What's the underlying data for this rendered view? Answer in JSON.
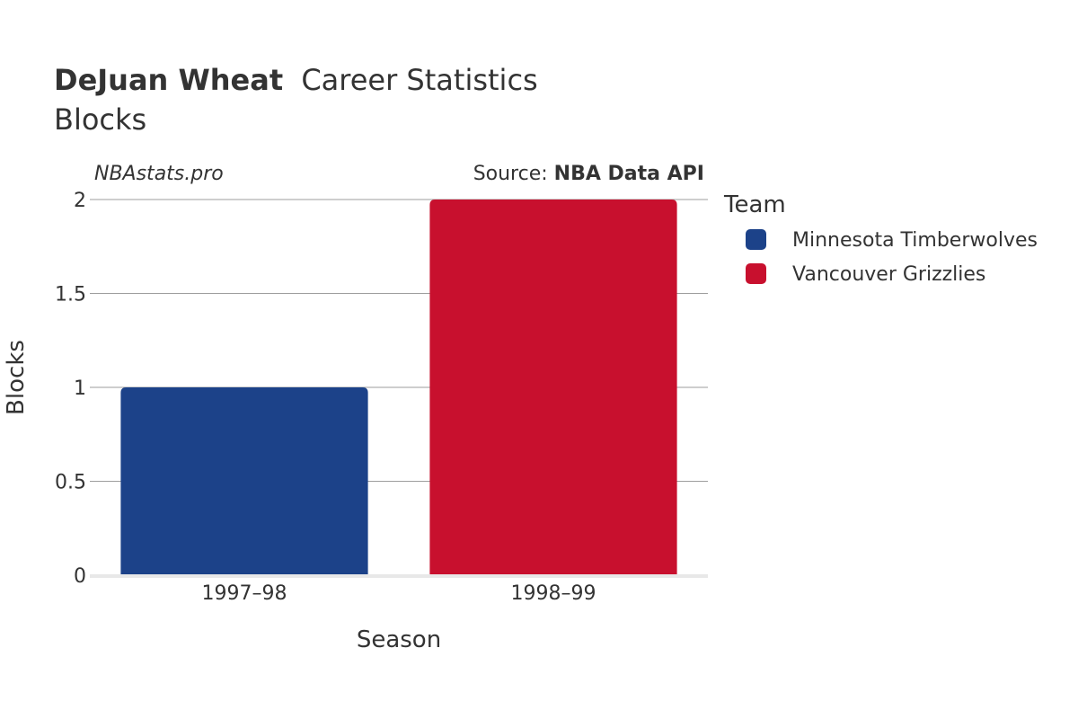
{
  "title": {
    "player": "DeJuan Wheat",
    "rest": "Career Statistics",
    "subtitle": "Blocks"
  },
  "watermark": "NBAstats.pro",
  "source": {
    "prefix": "Source: ",
    "name": "NBA Data API"
  },
  "legend": {
    "title": "Team",
    "placement": "right"
  },
  "chart_data": {
    "type": "bar",
    "categories": [
      "1997–98",
      "1998–99"
    ],
    "series": [
      {
        "name": "Minnesota Timberwolves",
        "color": "#1c4289",
        "values": [
          1,
          null
        ]
      },
      {
        "name": "Vancouver Grizzlies",
        "color": "#c8102e",
        "values": [
          null,
          2
        ]
      }
    ],
    "xlabel": "Season",
    "ylabel": "Blocks",
    "ylim": [
      0,
      2
    ],
    "yticks": [
      0,
      0.5,
      1,
      1.5,
      2
    ],
    "ytick_labels": [
      "0",
      "0.5",
      "1",
      "1.5",
      "2"
    ],
    "grid": true
  }
}
